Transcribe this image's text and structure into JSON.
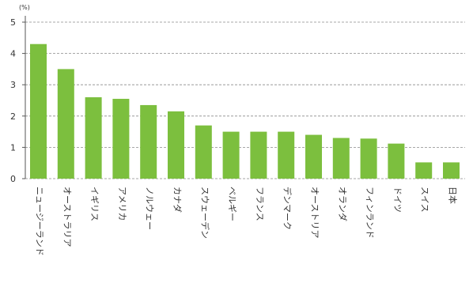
{
  "chart_data": {
    "type": "bar",
    "unit_label": "(%)",
    "categories": [
      "ニュージーランド",
      "オーストラリア",
      "イギリス",
      "アメリカ",
      "ノルウェー",
      "カナダ",
      "スウェーデン",
      "ベルギー",
      "フランス",
      "デンマーク",
      "オーストリア",
      "オランダ",
      "フィンランド",
      "ドイツ",
      "スイス",
      "日本"
    ],
    "values": [
      4.3,
      3.5,
      2.6,
      2.55,
      2.35,
      2.15,
      1.7,
      1.5,
      1.5,
      1.5,
      1.4,
      1.3,
      1.28,
      1.12,
      0.52,
      0.52
    ],
    "ylim": [
      0,
      5
    ],
    "yticks": [
      0,
      1,
      2,
      3,
      4,
      5
    ],
    "grid": true,
    "bar_color": "#7cbf3e",
    "title": "",
    "xlabel": "",
    "ylabel": ""
  }
}
